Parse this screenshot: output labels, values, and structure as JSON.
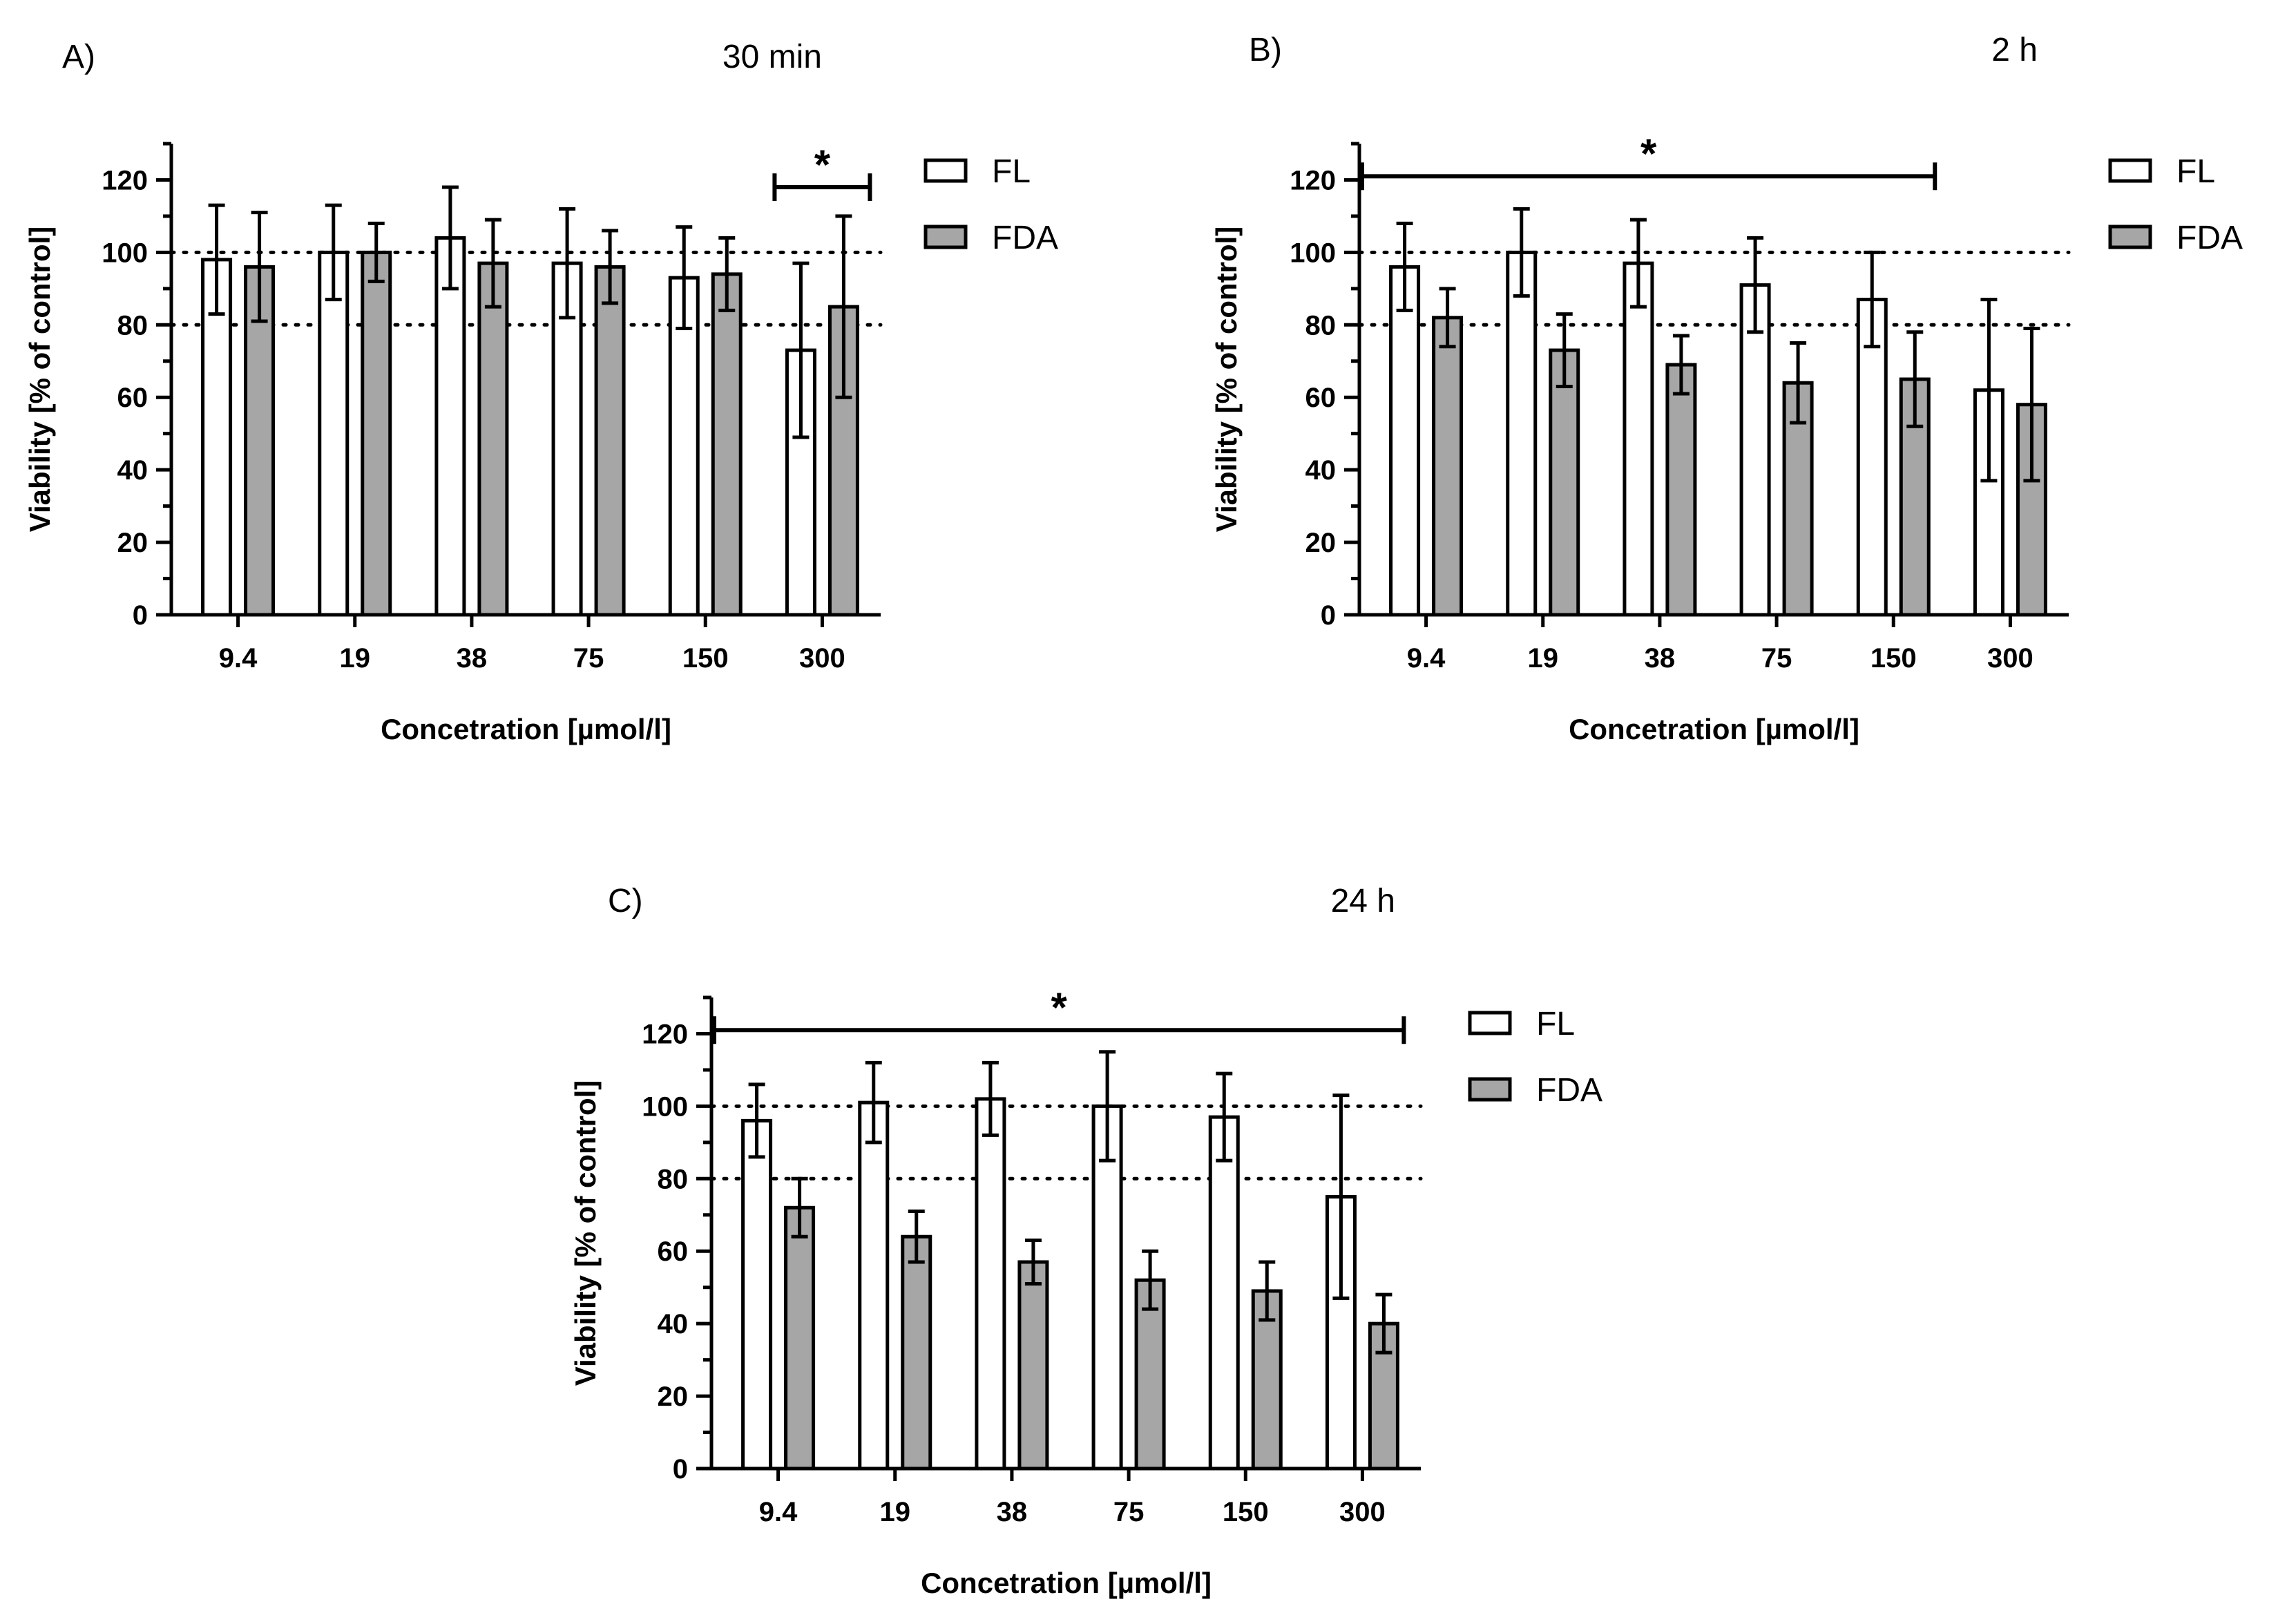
{
  "colors": {
    "FL": "#ffffff",
    "FDA": "#a6a6a6",
    "stroke": "#000000"
  },
  "chart_data": [
    {
      "type": "bar",
      "panel_label": "A)",
      "title": "30 min",
      "xlabel": "Concetration [µmol/l]",
      "ylabel": "Viability [% of control]",
      "ylim": [
        0,
        130
      ],
      "yticks": [
        "0",
        "20",
        "40",
        "60",
        "80",
        "100",
        "120"
      ],
      "reference_lines": [
        80,
        100
      ],
      "categories": [
        "9.4",
        "19",
        "38",
        "75",
        "150",
        "300"
      ],
      "series": [
        {
          "name": "FL",
          "values": [
            98,
            100,
            104,
            97,
            93,
            73
          ],
          "errors": [
            15,
            13,
            14,
            15,
            14,
            24
          ]
        },
        {
          "name": "FDA",
          "values": [
            96,
            100,
            97,
            96,
            94,
            85
          ],
          "errors": [
            15,
            8,
            12,
            10,
            10,
            25
          ]
        }
      ],
      "significance": {
        "label": "*",
        "from_category": "300",
        "to_category": "300",
        "level": 118
      }
    },
    {
      "type": "bar",
      "panel_label": "B)",
      "title": "2 h",
      "xlabel": "Concetration [µmol/l]",
      "ylabel": "Viability [% of control]",
      "ylim": [
        0,
        130
      ],
      "yticks": [
        "0",
        "20",
        "40",
        "60",
        "80",
        "100",
        "120"
      ],
      "reference_lines": [
        80,
        100
      ],
      "categories": [
        "9.4",
        "19",
        "38",
        "75",
        "150",
        "300"
      ],
      "series": [
        {
          "name": "FL",
          "values": [
            96,
            100,
            97,
            91,
            87,
            62
          ],
          "errors": [
            12,
            12,
            12,
            13,
            13,
            25
          ]
        },
        {
          "name": "FDA",
          "values": [
            82,
            73,
            69,
            64,
            65,
            58
          ],
          "errors": [
            8,
            10,
            8,
            11,
            13,
            21
          ]
        }
      ],
      "significance": {
        "label": "*",
        "from_category": "9.4",
        "to_category": "150",
        "level": 121
      }
    },
    {
      "type": "bar",
      "panel_label": "C)",
      "title": "24 h",
      "xlabel": "Concetration [µmol/l]",
      "ylabel": "Viability [% of control]",
      "ylim": [
        0,
        130
      ],
      "yticks": [
        "0",
        "20",
        "40",
        "60",
        "80",
        "100",
        "120"
      ],
      "reference_lines": [
        80,
        100
      ],
      "categories": [
        "9.4",
        "19",
        "38",
        "75",
        "150",
        "300"
      ],
      "series": [
        {
          "name": "FL",
          "values": [
            96,
            101,
            102,
            100,
            97,
            75
          ],
          "errors": [
            10,
            11,
            10,
            15,
            12,
            28
          ]
        },
        {
          "name": "FDA",
          "values": [
            72,
            64,
            57,
            52,
            49,
            40
          ],
          "errors": [
            8,
            7,
            6,
            8,
            8,
            8
          ]
        }
      ],
      "significance": {
        "label": "*",
        "from_category": "9.4",
        "to_category": "300",
        "level": 121
      }
    }
  ]
}
